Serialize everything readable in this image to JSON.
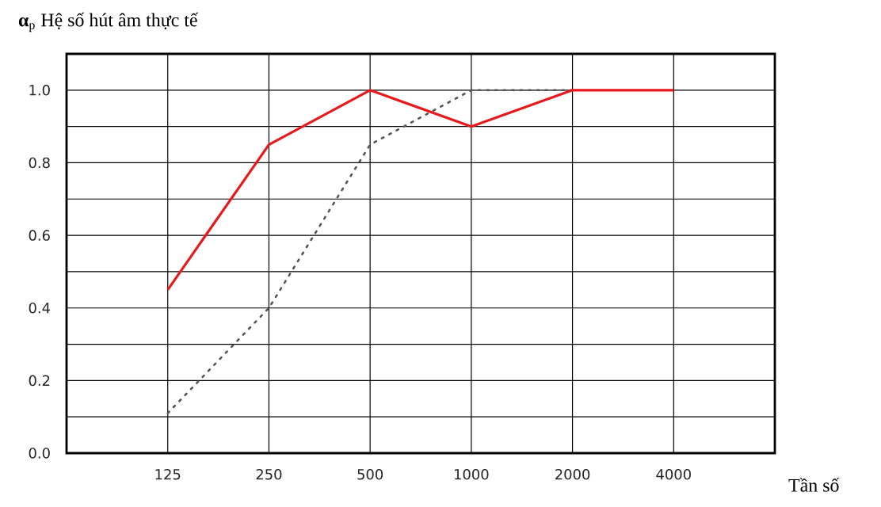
{
  "chart_data": {
    "type": "line",
    "title": "**α**$_{p}$ Hệ số hút âm thực tế",
    "annotations": [
      "Tần số"
    ],
    "categories": [
      "125",
      "250",
      "500",
      "1000",
      "2000",
      "4000"
    ],
    "series": [
      {
        "color": "#555555",
        "line_style": "dotted",
        "values": [
          0.11,
          0.4,
          0.85,
          1.0,
          1.0,
          null
        ]
      },
      {
        "color": "#e8191c",
        "line_style": "solid",
        "values": [
          0.45,
          0.85,
          1.0,
          0.9,
          1.0,
          1.0
        ]
      }
    ],
    "ylim": [
      0,
      1.1
    ],
    "yticks": [
      {
        "value": 0,
        "label": "0.0"
      },
      {
        "value": 0.1,
        "label": null
      },
      {
        "value": 0.2,
        "label": "0.2"
      },
      {
        "value": 0.3,
        "label": null
      },
      {
        "value": 0.4,
        "label": "0.4"
      },
      {
        "value": 0.5,
        "label": null
      },
      {
        "value": 0.6,
        "label": "0.6"
      },
      {
        "value": 0.7,
        "label": null
      },
      {
        "value": 0.8,
        "label": "0.8"
      },
      {
        "value": 0.9,
        "label": null
      },
      {
        "value": 1.0,
        "label": "1.0"
      }
    ],
    "grid": true,
    "marker": "none"
  }
}
